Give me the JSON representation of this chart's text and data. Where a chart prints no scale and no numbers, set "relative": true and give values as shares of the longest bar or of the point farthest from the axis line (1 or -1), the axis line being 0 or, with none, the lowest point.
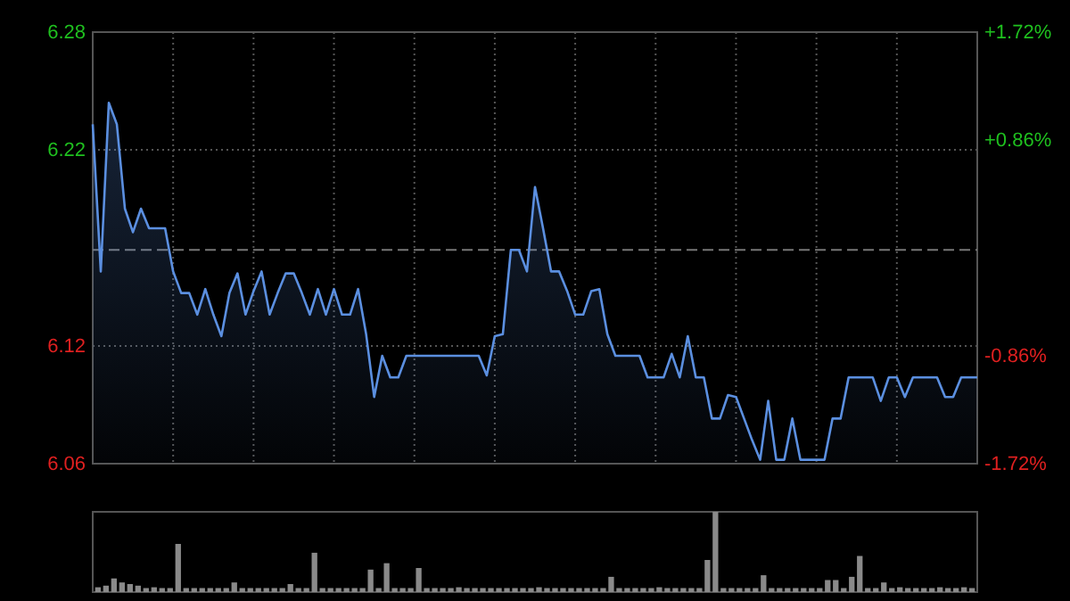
{
  "chart_data": [
    {
      "type": "area",
      "color": "#5b8fe0",
      "grid": true,
      "categories": [
        null,
        null,
        null,
        null,
        null,
        null,
        null,
        null,
        null,
        null,
        null,
        null,
        null,
        null,
        null,
        null,
        null,
        null,
        null,
        null,
        null,
        null,
        null,
        null,
        null,
        null,
        null,
        null,
        null,
        null,
        null,
        null,
        null,
        null,
        null,
        null,
        null,
        null,
        null,
        null,
        null,
        null,
        null,
        null,
        null,
        null,
        null,
        null,
        null,
        null,
        null,
        null,
        null,
        null,
        null,
        null,
        null,
        null,
        null,
        null,
        null,
        null,
        null,
        null,
        null,
        null,
        null,
        null,
        null,
        null,
        null,
        null,
        null,
        null,
        null,
        null,
        null,
        null,
        null,
        null,
        null,
        null,
        null,
        null,
        null,
        null,
        null,
        null,
        null,
        null,
        null,
        null,
        null,
        null,
        null,
        null,
        null,
        null,
        null,
        null,
        null,
        null,
        null,
        null,
        null,
        null,
        null,
        null,
        null,
        null,
        null
      ],
      "ylim": [
        6.06,
        6.28
      ],
      "yticks": [
        6.28,
        6.22,
        6.12,
        6.06
      ],
      "y2lim": [
        -1.72,
        1.72
      ],
      "y2ticks": [
        {
          "value": 1.72,
          "label": "+1.72%"
        },
        {
          "value": 0.86,
          "label": "+0.86%"
        },
        {
          "value": -0.86,
          "label": "-0.86%"
        },
        {
          "value": -1.72,
          "label": "-1.72%"
        }
      ],
      "ref_lines": [
        {
          "axis": "y",
          "value": 6.169,
          "line_style": "dashed",
          "color": "#777777"
        }
      ],
      "values": [
        6.233,
        6.158,
        6.244,
        6.233,
        6.19,
        6.178,
        6.19,
        6.18,
        6.18,
        6.18,
        6.158,
        6.147,
        6.147,
        6.136,
        6.149,
        6.136,
        6.125,
        6.147,
        6.157,
        6.136,
        6.148,
        6.158,
        6.136,
        6.147,
        6.157,
        6.157,
        6.147,
        6.136,
        6.149,
        6.136,
        6.149,
        6.136,
        6.136,
        6.149,
        6.126,
        6.094,
        6.115,
        6.104,
        6.104,
        6.115,
        6.115,
        6.115,
        6.115,
        6.115,
        6.115,
        6.115,
        6.115,
        6.115,
        6.115,
        6.105,
        6.125,
        6.126,
        6.169,
        6.169,
        6.158,
        6.201,
        6.18,
        6.158,
        6.158,
        6.148,
        6.136,
        6.136,
        6.148,
        6.149,
        6.126,
        6.115,
        6.115,
        6.115,
        6.115,
        6.104,
        6.104,
        6.104,
        6.116,
        6.104,
        6.125,
        6.104,
        6.104,
        6.083,
        6.083,
        6.095,
        6.094,
        6.083,
        6.072,
        6.062,
        6.092,
        6.062,
        6.062,
        6.083,
        6.062,
        6.062,
        6.062,
        6.062,
        6.083,
        6.083,
        6.104,
        6.104,
        6.104,
        6.104,
        6.092,
        6.104,
        6.104,
        6.094,
        6.104,
        6.104,
        6.104,
        6.104,
        6.094,
        6.094,
        6.104,
        6.104,
        6.104
      ]
    },
    {
      "type": "bar",
      "relative": true,
      "color": "#8a8a8a",
      "categories": [
        null,
        null,
        null,
        null,
        null,
        null,
        null,
        null,
        null,
        null,
        null,
        null,
        null,
        null,
        null,
        null,
        null,
        null,
        null,
        null,
        null,
        null,
        null,
        null,
        null,
        null,
        null,
        null,
        null,
        null,
        null,
        null,
        null,
        null,
        null,
        null,
        null,
        null,
        null,
        null,
        null,
        null,
        null,
        null,
        null,
        null,
        null,
        null,
        null,
        null,
        null,
        null,
        null,
        null,
        null,
        null,
        null,
        null,
        null,
        null,
        null,
        null,
        null,
        null,
        null,
        null,
        null,
        null,
        null,
        null,
        null,
        null,
        null,
        null,
        null,
        null,
        null,
        null,
        null,
        null,
        null,
        null,
        null,
        null,
        null,
        null,
        null,
        null,
        null,
        null,
        null,
        null,
        null,
        null,
        null,
        null,
        null,
        null,
        null,
        null,
        null,
        null,
        null,
        null,
        null,
        null,
        null,
        null,
        null,
        null
      ],
      "values": [
        0.06,
        0.08,
        0.17,
        0.12,
        0.1,
        0.08,
        0.05,
        0.06,
        0.05,
        0.05,
        0.6,
        0.05,
        0.05,
        0.05,
        0.05,
        0.05,
        0.05,
        0.12,
        0.05,
        0.05,
        0.05,
        0.05,
        0.05,
        0.05,
        0.1,
        0.05,
        0.05,
        0.49,
        0.05,
        0.05,
        0.05,
        0.05,
        0.05,
        0.05,
        0.28,
        0.05,
        0.36,
        0.05,
        0.05,
        0.05,
        0.3,
        0.05,
        0.05,
        0.05,
        0.05,
        0.06,
        0.05,
        0.05,
        0.05,
        0.05,
        0.05,
        0.05,
        0.05,
        0.05,
        0.05,
        0.06,
        0.05,
        0.05,
        0.05,
        0.05,
        0.05,
        0.05,
        0.05,
        0.05,
        0.19,
        0.05,
        0.05,
        0.05,
        0.05,
        0.05,
        0.06,
        0.05,
        0.05,
        0.05,
        0.05,
        0.05,
        0.4,
        1,
        0.05,
        0.05,
        0.05,
        0.05,
        0.05,
        0.21,
        0.05,
        0.05,
        0.05,
        0.05,
        0.05,
        0.05,
        0.05,
        0.15,
        0.15,
        0.05,
        0.19,
        0.45,
        0.05,
        0.05,
        0.12,
        0.05,
        0.06,
        0.05,
        0.05,
        0.05,
        0.05,
        0.06,
        0.05,
        0.05,
        0.06,
        0.05
      ]
    }
  ]
}
